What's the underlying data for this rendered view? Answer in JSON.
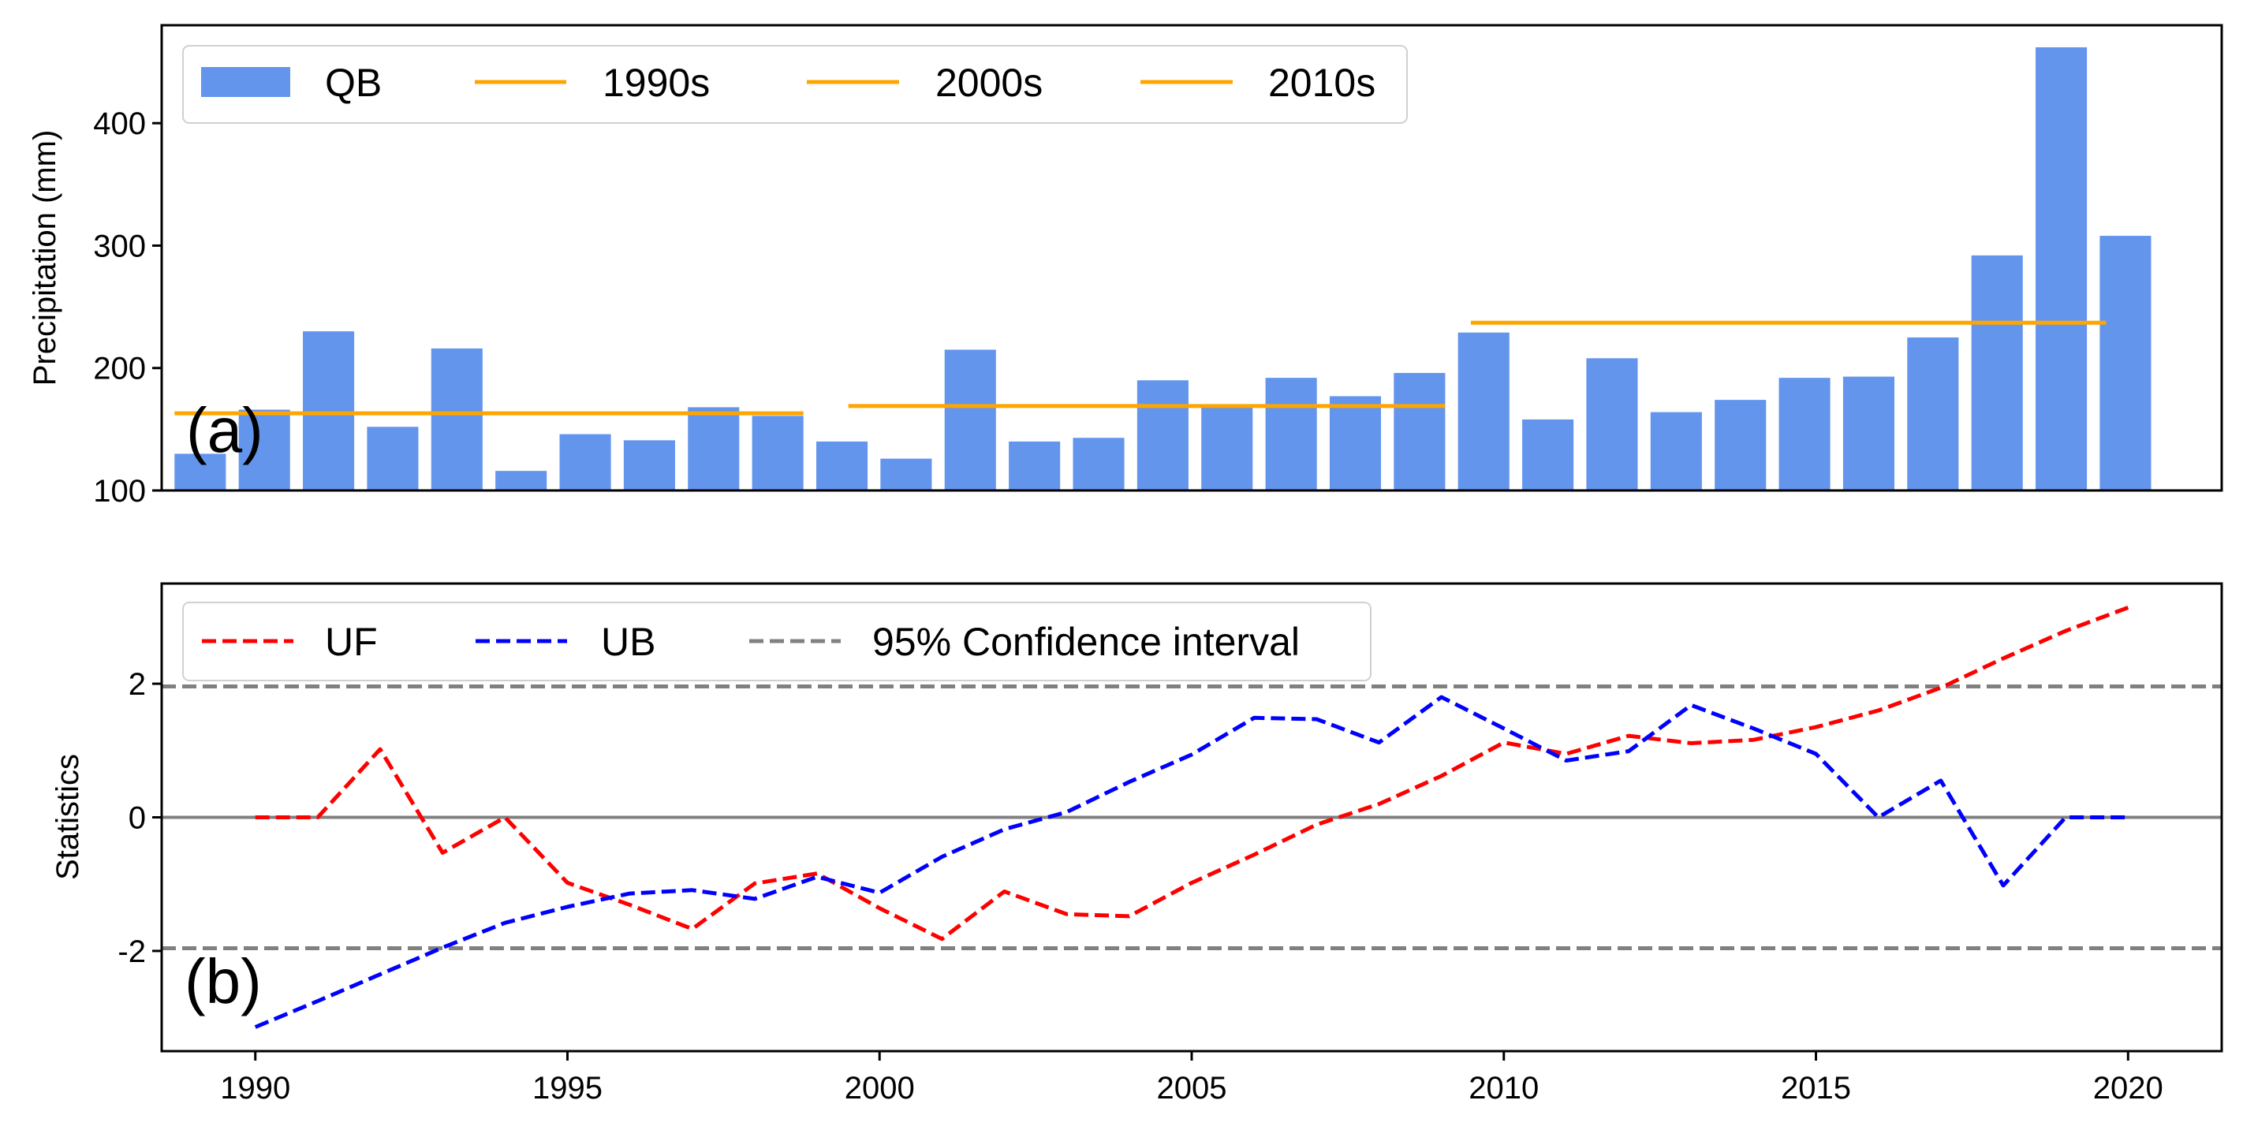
{
  "chart_data": [
    {
      "panel_label": "(a)",
      "type": "bar",
      "ylabel": "Precipitation (mm)",
      "ylim": [
        100,
        480
      ],
      "yticks": [
        100,
        200,
        300,
        400
      ],
      "xlim": [
        1989.4,
        2021.5
      ],
      "xticks": [
        1990,
        1995,
        2000,
        2005,
        2010,
        2015,
        2020
      ],
      "grid": false,
      "legend_position": "top-left",
      "bar_series": {
        "name": "QB",
        "color": "#6495ED",
        "x": [
          1990,
          1991,
          1992,
          1993,
          1994,
          1995,
          1996,
          1997,
          1998,
          1999,
          2000,
          2001,
          2002,
          2003,
          2004,
          2005,
          2006,
          2007,
          2008,
          2009,
          2010,
          2011,
          2012,
          2013,
          2014,
          2015,
          2016,
          2017,
          2018,
          2019,
          2020
        ],
        "values": [
          130,
          166,
          230,
          152,
          216,
          116,
          146,
          141,
          168,
          161,
          140,
          126,
          215,
          140,
          143,
          190,
          168,
          192,
          177,
          196,
          229,
          158,
          208,
          164,
          174,
          192,
          193,
          225,
          292,
          462,
          308
        ]
      },
      "decadal_means": [
        {
          "name": "1990s",
          "color": "#FFA500",
          "x_start": 1989.6,
          "x_end": 1999.4,
          "value": 163
        },
        {
          "name": "2000s",
          "color": "#FFA500",
          "x_start": 2000.1,
          "x_end": 2009.4,
          "value": 169
        },
        {
          "name": "2010s",
          "color": "#FFA500",
          "x_start": 2009.8,
          "x_end": 2019.7,
          "value": 237
        }
      ]
    },
    {
      "panel_label": "(b)",
      "type": "line",
      "ylabel": "Statistics",
      "ylim": [
        -3.5,
        3.5
      ],
      "yticks": [
        -2,
        0,
        2
      ],
      "ytick_labels": [
        "-2",
        "0",
        "2"
      ],
      "xlim": [
        1988.5,
        2021.5
      ],
      "xticks": [
        1990,
        1995,
        2000,
        2005,
        2010,
        2015,
        2020
      ],
      "xtick_labels": [
        "1990",
        "1995",
        "2000",
        "2005",
        "2010",
        "2015",
        "2020"
      ],
      "grid": false,
      "legend_position": "top-left",
      "zero_line": {
        "value": 0,
        "color": "#808080"
      },
      "x": [
        1990,
        1991,
        1992,
        1993,
        1994,
        1995,
        1996,
        1997,
        1998,
        1999,
        2000,
        2001,
        2002,
        2003,
        2004,
        2005,
        2006,
        2007,
        2008,
        2009,
        2010,
        2011,
        2012,
        2013,
        2014,
        2015,
        2016,
        2017,
        2018,
        2019,
        2020
      ],
      "series": [
        {
          "name": "UF",
          "color": "#FF0000",
          "dashed": true,
          "values": [
            0,
            0,
            1.02,
            -0.53,
            0,
            -0.98,
            -1.31,
            -1.67,
            -0.99,
            -0.84,
            -1.36,
            -1.82,
            -1.11,
            -1.45,
            -1.48,
            -0.98,
            -0.56,
            -0.11,
            0.2,
            0.62,
            1.12,
            0.95,
            1.22,
            1.11,
            1.16,
            1.35,
            1.6,
            1.94,
            2.38,
            2.79,
            3.14
          ]
        },
        {
          "name": "UB",
          "color": "#0000FF",
          "dashed": true,
          "values": [
            -3.14,
            -2.75,
            -2.35,
            -1.95,
            -1.58,
            -1.34,
            -1.14,
            -1.09,
            -1.22,
            -0.89,
            -1.13,
            -0.59,
            -0.18,
            0.08,
            0.53,
            0.94,
            1.49,
            1.47,
            1.12,
            1.8,
            1.33,
            0.85,
            0.99,
            1.68,
            1.33,
            0.95,
            0,
            0.55,
            -1.02,
            0,
            0
          ]
        }
      ],
      "confidence_interval": {
        "name": "95% Confidence interval",
        "color": "#808080",
        "values": [
          1.96,
          -1.96
        ]
      }
    }
  ]
}
